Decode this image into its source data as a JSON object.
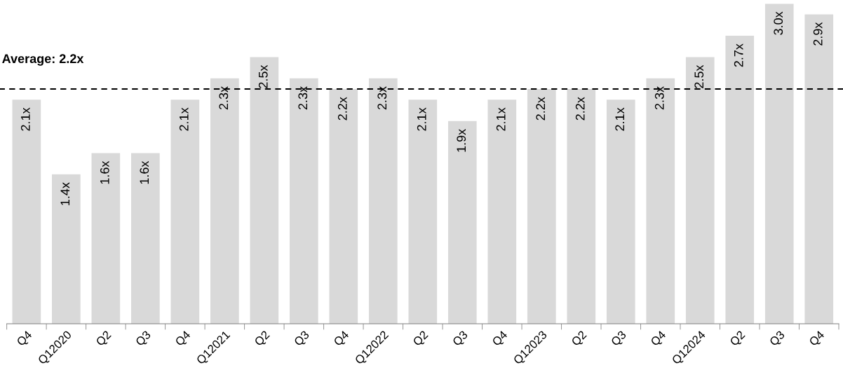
{
  "chart_data": {
    "type": "bar",
    "categories": [
      "Q4",
      "Q12020",
      "Q2",
      "Q3",
      "Q4",
      "Q12021",
      "Q2",
      "Q3",
      "Q4",
      "Q12022",
      "Q2",
      "Q3",
      "Q4",
      "Q12023",
      "Q2",
      "Q3",
      "Q4",
      "Q12024",
      "Q2",
      "Q3",
      "Q4"
    ],
    "values": [
      2.1,
      1.4,
      1.6,
      1.6,
      2.1,
      2.3,
      2.5,
      2.3,
      2.2,
      2.3,
      2.1,
      1.9,
      2.1,
      2.2,
      2.2,
      2.1,
      2.3,
      2.5,
      2.7,
      3.0,
      2.9
    ],
    "value_labels": [
      "2.1x",
      "1.4x",
      "1.6x",
      "1.6x",
      "2.1x",
      "2.3x",
      "2.5x",
      "2.3x",
      "2.2x",
      "2.3x",
      "2.1x",
      "1.9x",
      "2.1x",
      "2.2x",
      "2.2x",
      "2.1x",
      "2.3x",
      "2.5x",
      "2.7x",
      "3.0x",
      "2.9x"
    ],
    "color": "#d9d9d9",
    "ylim": [
      0,
      3.0
    ],
    "tick_labels": "x",
    "grid": false,
    "legend": false,
    "ref_lines": [
      {
        "axis": "y",
        "value": 2.2,
        "label": "Average: 2.2x",
        "color": "#000000",
        "line_style": "dashed"
      }
    ]
  }
}
